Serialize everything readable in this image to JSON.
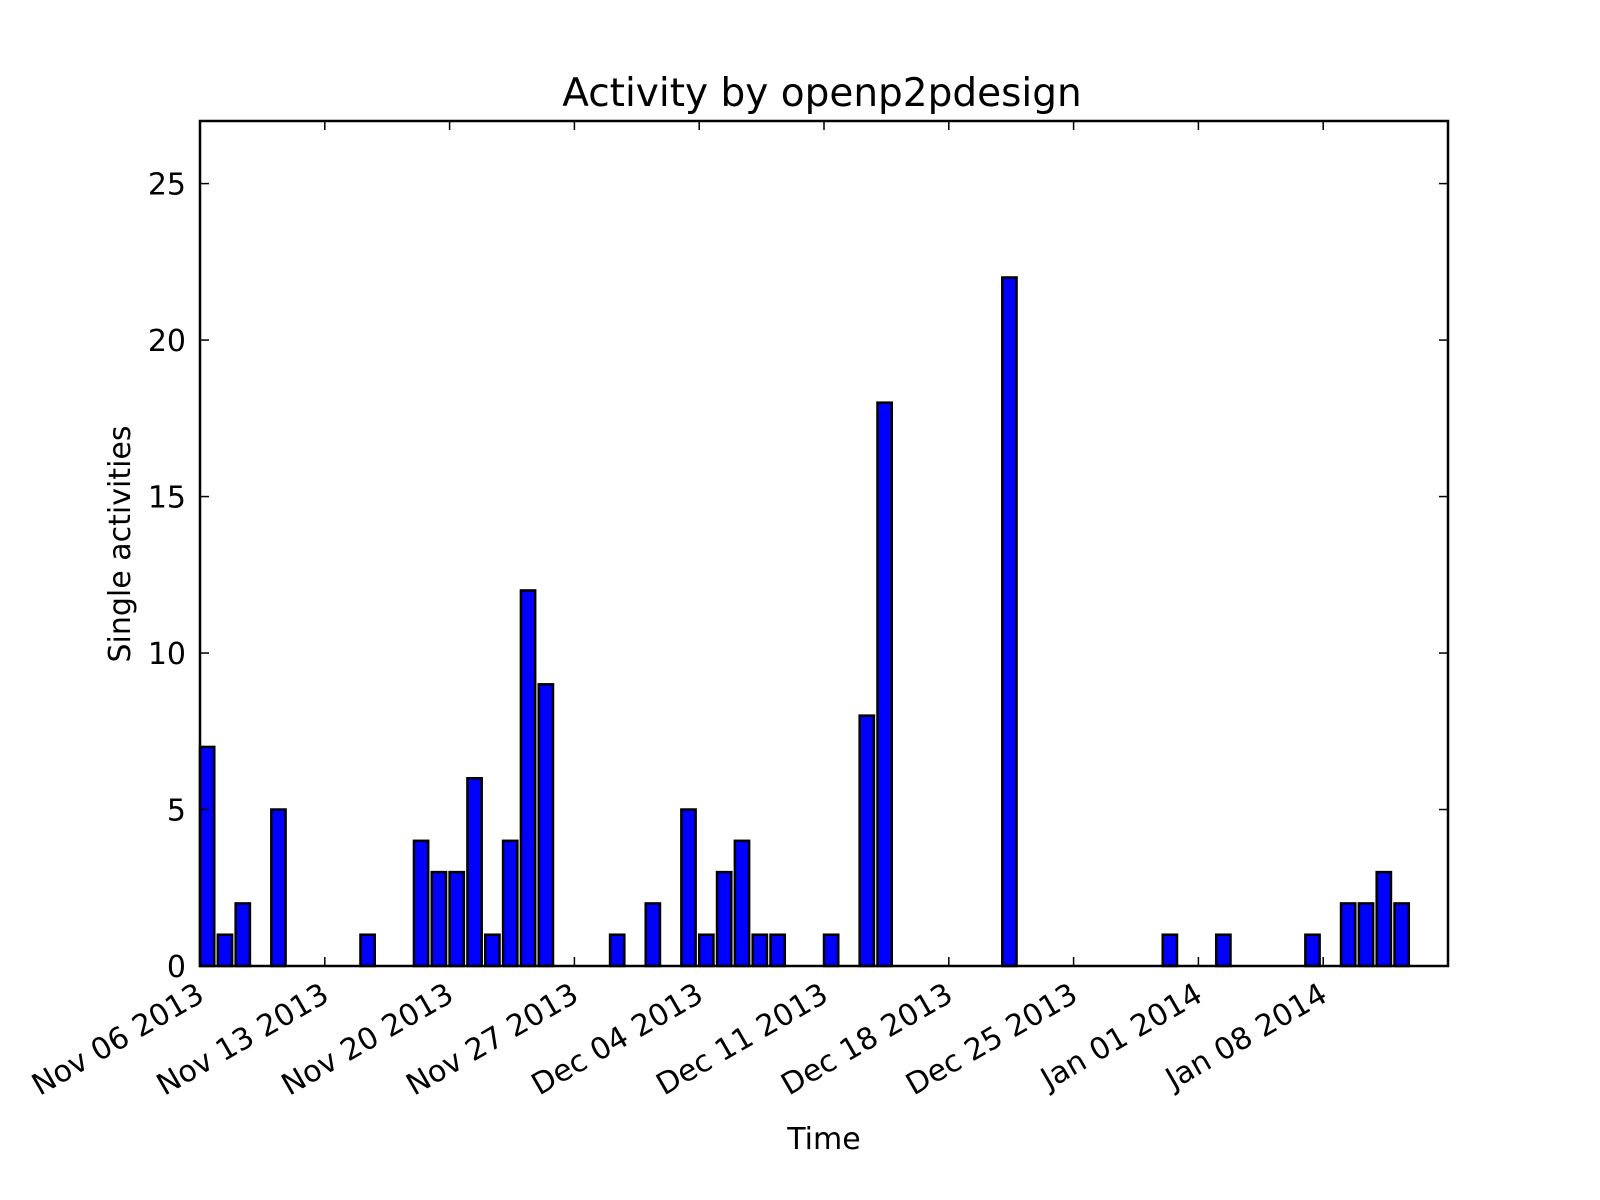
{
  "chart_data": {
    "type": "bar",
    "title": "Activity by openp2pdesign",
    "xlabel": "Time",
    "ylabel": "Single activities",
    "ylim": [
      0,
      27
    ],
    "yticks": [
      0,
      5,
      10,
      15,
      20,
      25
    ],
    "xlim": [
      "2013-11-06",
      "2014-01-15"
    ],
    "xticks": [
      {
        "date": "2013-11-06",
        "label": "Nov 06 2013"
      },
      {
        "date": "2013-11-13",
        "label": "Nov 13 2013"
      },
      {
        "date": "2013-11-20",
        "label": "Nov 20 2013"
      },
      {
        "date": "2013-11-27",
        "label": "Nov 27 2013"
      },
      {
        "date": "2013-12-04",
        "label": "Dec 04 2013"
      },
      {
        "date": "2013-12-11",
        "label": "Dec 11 2013"
      },
      {
        "date": "2013-12-18",
        "label": "Dec 18 2013"
      },
      {
        "date": "2013-12-25",
        "label": "Dec 25 2013"
      },
      {
        "date": "2014-01-01",
        "label": "Jan 01 2014"
      },
      {
        "date": "2014-01-08",
        "label": "Jan 08 2014"
      }
    ],
    "bar_color": "#0000ff",
    "grid": false,
    "legend": "none",
    "series": [
      {
        "points": [
          {
            "x": "2013-11-06",
            "y": 7
          },
          {
            "x": "2013-11-07",
            "y": 1
          },
          {
            "x": "2013-11-08",
            "y": 2
          },
          {
            "x": "2013-11-10",
            "y": 5
          },
          {
            "x": "2013-11-15",
            "y": 1
          },
          {
            "x": "2013-11-18",
            "y": 4
          },
          {
            "x": "2013-11-19",
            "y": 3
          },
          {
            "x": "2013-11-20",
            "y": 3
          },
          {
            "x": "2013-11-21",
            "y": 6
          },
          {
            "x": "2013-11-22",
            "y": 1
          },
          {
            "x": "2013-11-23",
            "y": 4
          },
          {
            "x": "2013-11-24",
            "y": 12
          },
          {
            "x": "2013-11-25",
            "y": 9
          },
          {
            "x": "2013-11-29",
            "y": 1
          },
          {
            "x": "2013-12-01",
            "y": 2
          },
          {
            "x": "2013-12-03",
            "y": 5
          },
          {
            "x": "2013-12-04",
            "y": 1
          },
          {
            "x": "2013-12-05",
            "y": 3
          },
          {
            "x": "2013-12-06",
            "y": 4
          },
          {
            "x": "2013-12-07",
            "y": 1
          },
          {
            "x": "2013-12-08",
            "y": 1
          },
          {
            "x": "2013-12-11",
            "y": 1
          },
          {
            "x": "2013-12-13",
            "y": 8
          },
          {
            "x": "2013-12-14",
            "y": 18
          },
          {
            "x": "2013-12-21",
            "y": 22
          },
          {
            "x": "2013-12-30",
            "y": 1
          },
          {
            "x": "2014-01-02",
            "y": 1
          },
          {
            "x": "2014-01-07",
            "y": 1
          },
          {
            "x": "2014-01-09",
            "y": 2
          },
          {
            "x": "2014-01-10",
            "y": 2
          },
          {
            "x": "2014-01-11",
            "y": 3
          },
          {
            "x": "2014-01-12",
            "y": 2
          }
        ]
      }
    ]
  }
}
